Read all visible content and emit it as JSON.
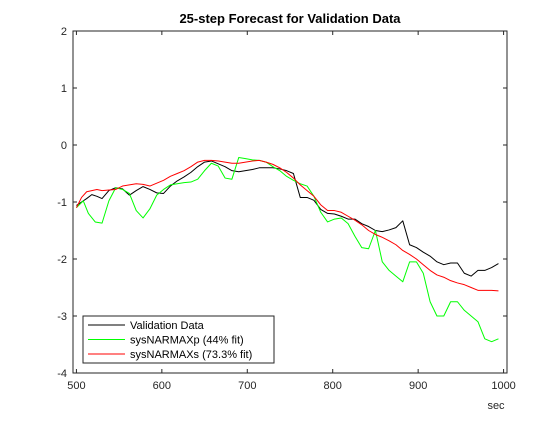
{
  "chart_data": {
    "type": "line",
    "title": "25-step Forecast for Validation Data",
    "xlabel": "",
    "ylabel": "",
    "x_unit_label": "sec",
    "xlim": [
      496,
      1004
    ],
    "ylim": [
      -4,
      2
    ],
    "x_ticks": [
      500,
      600,
      700,
      800,
      900,
      1000
    ],
    "y_ticks": [
      2,
      1,
      0,
      -1,
      -2,
      -3,
      -4
    ],
    "grid": false,
    "legend_placement": "bottom-left",
    "series": [
      {
        "name": "Validation Data",
        "color": "#000000",
        "points": [
          [
            500,
            -1.06
          ],
          [
            506,
            -1.0
          ],
          [
            512,
            -0.94
          ],
          [
            518,
            -0.87
          ],
          [
            524,
            -0.9
          ],
          [
            530,
            -0.94
          ],
          [
            538,
            -0.8
          ],
          [
            546,
            -0.75
          ],
          [
            554,
            -0.77
          ],
          [
            562,
            -0.88
          ],
          [
            570,
            -0.8
          ],
          [
            578,
            -0.73
          ],
          [
            586,
            -0.78
          ],
          [
            594,
            -0.84
          ],
          [
            602,
            -0.85
          ],
          [
            610,
            -0.72
          ],
          [
            618,
            -0.63
          ],
          [
            626,
            -0.56
          ],
          [
            634,
            -0.48
          ],
          [
            642,
            -0.38
          ],
          [
            650,
            -0.3
          ],
          [
            658,
            -0.28
          ],
          [
            666,
            -0.33
          ],
          [
            674,
            -0.38
          ],
          [
            682,
            -0.45
          ],
          [
            690,
            -0.47
          ],
          [
            698,
            -0.45
          ],
          [
            706,
            -0.43
          ],
          [
            714,
            -0.4
          ],
          [
            722,
            -0.4
          ],
          [
            730,
            -0.4
          ],
          [
            738,
            -0.42
          ],
          [
            746,
            -0.45
          ],
          [
            754,
            -0.5
          ],
          [
            762,
            -0.92
          ],
          [
            770,
            -0.92
          ],
          [
            778,
            -0.97
          ],
          [
            786,
            -1.13
          ],
          [
            794,
            -1.2
          ],
          [
            802,
            -1.21
          ],
          [
            810,
            -1.25
          ],
          [
            818,
            -1.3
          ],
          [
            826,
            -1.3
          ],
          [
            834,
            -1.38
          ],
          [
            842,
            -1.43
          ],
          [
            850,
            -1.5
          ],
          [
            858,
            -1.52
          ],
          [
            866,
            -1.49
          ],
          [
            874,
            -1.45
          ],
          [
            882,
            -1.33
          ],
          [
            890,
            -1.75
          ],
          [
            898,
            -1.8
          ],
          [
            906,
            -1.88
          ],
          [
            914,
            -1.95
          ],
          [
            922,
            -2.05
          ],
          [
            930,
            -2.1
          ],
          [
            938,
            -2.07
          ],
          [
            946,
            -2.07
          ],
          [
            954,
            -2.25
          ],
          [
            962,
            -2.3
          ],
          [
            970,
            -2.2
          ],
          [
            978,
            -2.2
          ],
          [
            986,
            -2.15
          ],
          [
            994,
            -2.08
          ]
        ]
      },
      {
        "name": "sysNARMAXp (44% fit)",
        "color": "#00ff00",
        "points": [
          [
            500,
            -1.1
          ],
          [
            508,
            -0.98
          ],
          [
            514,
            -1.2
          ],
          [
            522,
            -1.35
          ],
          [
            530,
            -1.37
          ],
          [
            538,
            -0.98
          ],
          [
            546,
            -0.75
          ],
          [
            554,
            -0.78
          ],
          [
            562,
            -0.85
          ],
          [
            570,
            -1.15
          ],
          [
            578,
            -1.28
          ],
          [
            586,
            -1.12
          ],
          [
            594,
            -0.88
          ],
          [
            602,
            -0.78
          ],
          [
            610,
            -0.7
          ],
          [
            618,
            -0.68
          ],
          [
            626,
            -0.66
          ],
          [
            634,
            -0.65
          ],
          [
            642,
            -0.6
          ],
          [
            650,
            -0.45
          ],
          [
            658,
            -0.32
          ],
          [
            666,
            -0.37
          ],
          [
            674,
            -0.58
          ],
          [
            682,
            -0.6
          ],
          [
            690,
            -0.22
          ],
          [
            698,
            -0.24
          ],
          [
            706,
            -0.26
          ],
          [
            714,
            -0.27
          ],
          [
            722,
            -0.3
          ],
          [
            730,
            -0.38
          ],
          [
            738,
            -0.45
          ],
          [
            746,
            -0.55
          ],
          [
            754,
            -0.62
          ],
          [
            762,
            -0.68
          ],
          [
            770,
            -0.72
          ],
          [
            778,
            -0.9
          ],
          [
            786,
            -1.18
          ],
          [
            794,
            -1.35
          ],
          [
            802,
            -1.3
          ],
          [
            810,
            -1.28
          ],
          [
            818,
            -1.38
          ],
          [
            826,
            -1.6
          ],
          [
            834,
            -1.8
          ],
          [
            842,
            -1.82
          ],
          [
            850,
            -1.5
          ],
          [
            858,
            -2.05
          ],
          [
            866,
            -2.2
          ],
          [
            874,
            -2.3
          ],
          [
            882,
            -2.4
          ],
          [
            890,
            -2.05
          ],
          [
            898,
            -2.05
          ],
          [
            906,
            -2.25
          ],
          [
            914,
            -2.75
          ],
          [
            922,
            -3.0
          ],
          [
            930,
            -3.0
          ],
          [
            938,
            -2.75
          ],
          [
            946,
            -2.75
          ],
          [
            954,
            -2.9
          ],
          [
            962,
            -3.0
          ],
          [
            970,
            -3.1
          ],
          [
            978,
            -3.4
          ],
          [
            986,
            -3.45
          ],
          [
            994,
            -3.4
          ]
        ]
      },
      {
        "name": "sysNARMAXs (73.3% fit)",
        "color": "#ff0000",
        "points": [
          [
            500,
            -1.1
          ],
          [
            506,
            -0.92
          ],
          [
            512,
            -0.82
          ],
          [
            518,
            -0.8
          ],
          [
            524,
            -0.78
          ],
          [
            530,
            -0.8
          ],
          [
            538,
            -0.79
          ],
          [
            546,
            -0.78
          ],
          [
            554,
            -0.72
          ],
          [
            562,
            -0.7
          ],
          [
            570,
            -0.68
          ],
          [
            578,
            -0.69
          ],
          [
            586,
            -0.72
          ],
          [
            594,
            -0.67
          ],
          [
            602,
            -0.62
          ],
          [
            610,
            -0.55
          ],
          [
            618,
            -0.5
          ],
          [
            626,
            -0.45
          ],
          [
            634,
            -0.38
          ],
          [
            642,
            -0.3
          ],
          [
            650,
            -0.27
          ],
          [
            658,
            -0.27
          ],
          [
            666,
            -0.28
          ],
          [
            674,
            -0.3
          ],
          [
            682,
            -0.32
          ],
          [
            690,
            -0.32
          ],
          [
            698,
            -0.3
          ],
          [
            706,
            -0.28
          ],
          [
            714,
            -0.27
          ],
          [
            722,
            -0.3
          ],
          [
            730,
            -0.34
          ],
          [
            738,
            -0.4
          ],
          [
            746,
            -0.48
          ],
          [
            754,
            -0.58
          ],
          [
            762,
            -0.7
          ],
          [
            770,
            -0.8
          ],
          [
            778,
            -0.9
          ],
          [
            786,
            -1.05
          ],
          [
            794,
            -1.15
          ],
          [
            802,
            -1.15
          ],
          [
            810,
            -1.18
          ],
          [
            818,
            -1.25
          ],
          [
            826,
            -1.32
          ],
          [
            834,
            -1.4
          ],
          [
            842,
            -1.5
          ],
          [
            850,
            -1.57
          ],
          [
            858,
            -1.62
          ],
          [
            866,
            -1.68
          ],
          [
            874,
            -1.75
          ],
          [
            882,
            -1.85
          ],
          [
            890,
            -1.92
          ],
          [
            898,
            -2.0
          ],
          [
            906,
            -2.1
          ],
          [
            914,
            -2.2
          ],
          [
            922,
            -2.28
          ],
          [
            930,
            -2.32
          ],
          [
            938,
            -2.38
          ],
          [
            946,
            -2.42
          ],
          [
            954,
            -2.45
          ],
          [
            962,
            -2.5
          ],
          [
            970,
            -2.55
          ],
          [
            978,
            -2.55
          ],
          [
            986,
            -2.55
          ],
          [
            994,
            -2.56
          ]
        ]
      }
    ]
  }
}
